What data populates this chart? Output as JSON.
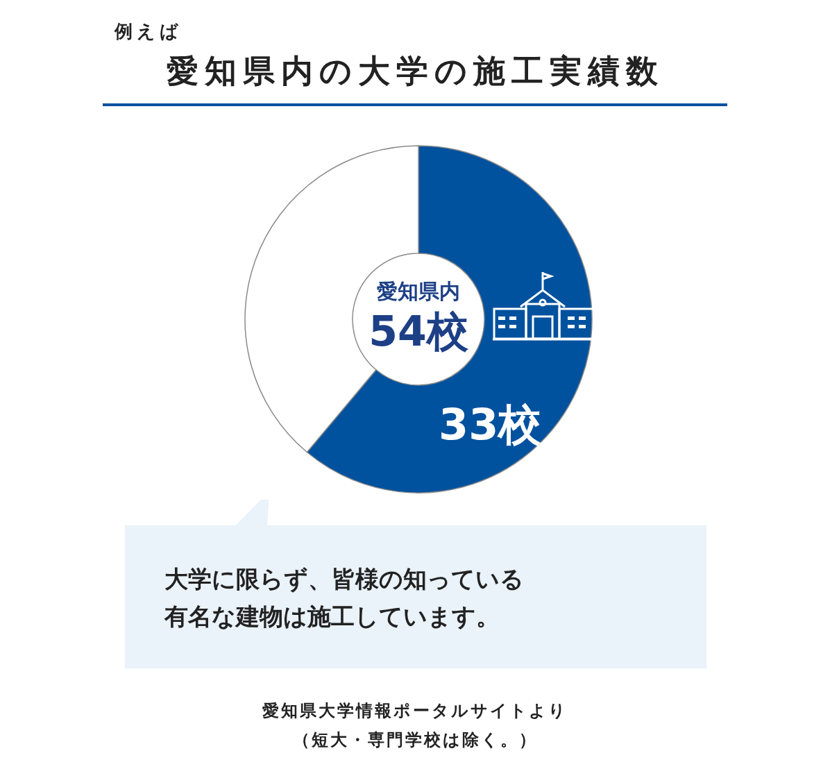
{
  "chart_data": {
    "type": "donut",
    "title": "愛知県内の大学の施工実績数",
    "subtitle": "例えば",
    "categories": [
      null,
      null
    ],
    "values": [
      33,
      21
    ],
    "colors": [
      "#00519e",
      "#ffffff"
    ],
    "value_labels": [
      "33校",
      null
    ],
    "annotations": [
      "愛知県内",
      "54校",
      "大学に限らず、皆様の知っている",
      "有名な建物は施工しています。",
      "愛知県大学情報ポータルサイトより",
      "（短大・専門学校は除く。）"
    ]
  }
}
